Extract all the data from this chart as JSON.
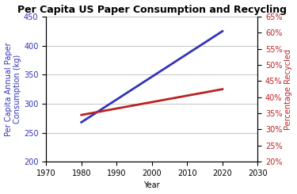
{
  "title": "Per Capita US Paper Consumption and Recycling",
  "xlabel": "Year",
  "ylabel_left": "Per Capita Annual Paper\nConsumption (kg)",
  "ylabel_right": "Percentage Recycled",
  "consumption_years": [
    1980,
    2020
  ],
  "consumption_values": [
    268,
    425
  ],
  "recycling_years": [
    1980,
    1985,
    1990,
    1995,
    2000,
    2005,
    2010,
    2015,
    2020
  ],
  "recycling_values": [
    34.5,
    35.5,
    36.5,
    37.5,
    38.5,
    39.5,
    40.5,
    41.5,
    42.5
  ],
  "xlim": [
    1970,
    2030
  ],
  "xticks": [
    1970,
    1980,
    1990,
    2000,
    2010,
    2020,
    2030
  ],
  "ylim_left": [
    200,
    450
  ],
  "yticks_left": [
    200,
    250,
    300,
    350,
    400,
    450
  ],
  "ylim_right": [
    20,
    65
  ],
  "yticks_right": [
    20,
    25,
    30,
    35,
    40,
    45,
    50,
    55,
    60,
    65
  ],
  "line_color_blue": "#3333BB",
  "line_color_red": "#BB2222",
  "bg_color": "#FFFFFF",
  "plot_bg_color": "#FFFFFF",
  "title_fontsize": 9,
  "label_fontsize": 7,
  "tick_fontsize": 7,
  "figwidth": 3.75,
  "figheight": 2.45,
  "linewidth": 2.0
}
